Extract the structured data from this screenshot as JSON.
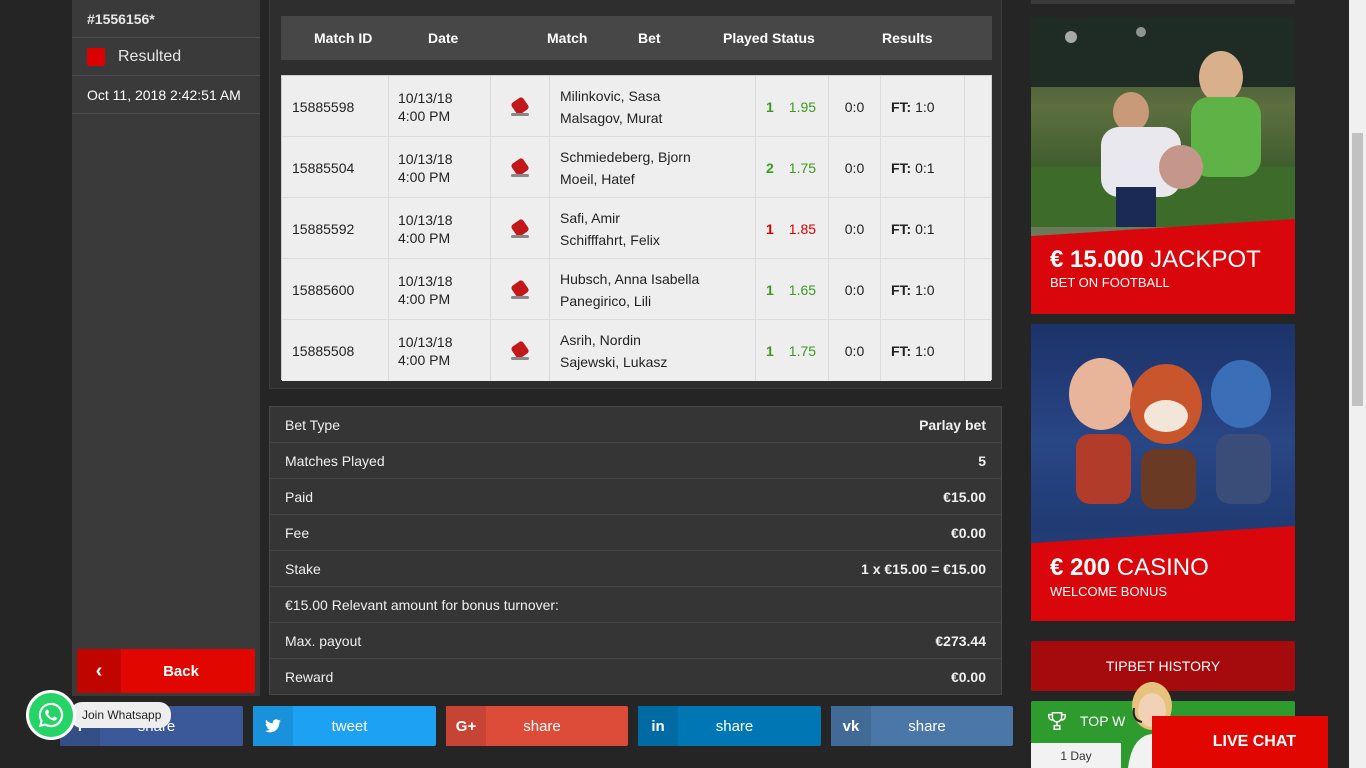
{
  "bet_panel": {
    "bet_id": "#1556156*",
    "status": "Resulted",
    "timestamp": "Oct 11, 2018 2:42:51 AM",
    "back_label": "Back",
    "status_color": "#dd0000"
  },
  "matches_table": {
    "headers": [
      "Match ID",
      "Date",
      "Match",
      "Bet",
      "Played Status",
      "Results"
    ],
    "rows": [
      {
        "id": "15885598",
        "date": "10/13/18",
        "time": "4:00 PM",
        "home": "Milinkovic, Sasa",
        "away": "Malsagov, Murat",
        "pick": "1",
        "odds": "1.95",
        "outcome": "green",
        "score": "0:0",
        "ft_label": "FT:",
        "ft": "1:0"
      },
      {
        "id": "15885504",
        "date": "10/13/18",
        "time": "4:00 PM",
        "home": "Schmiedeberg, Bjorn",
        "away": "Moeil, Hatef",
        "pick": "2",
        "odds": "1.75",
        "outcome": "green",
        "score": "0:0",
        "ft_label": "FT:",
        "ft": "0:1"
      },
      {
        "id": "15885592",
        "date": "10/13/18",
        "time": "4:00 PM",
        "home": "Safi, Amir",
        "away": "Schifffahrt, Felix",
        "pick": "1",
        "odds": "1.85",
        "outcome": "red",
        "score": "0:0",
        "ft_label": "FT:",
        "ft": "0:1"
      },
      {
        "id": "15885600",
        "date": "10/13/18",
        "time": "4:00 PM",
        "home": "Hubsch, Anna Isabella",
        "away": "Panegirico, Lili",
        "pick": "1",
        "odds": "1.65",
        "outcome": "green",
        "score": "0:0",
        "ft_label": "FT:",
        "ft": "1:0"
      },
      {
        "id": "15885508",
        "date": "10/13/18",
        "time": "4:00 PM",
        "home": "Asrih, Nordin",
        "away": "Sajewski, Lukasz",
        "pick": "1",
        "odds": "1.75",
        "outcome": "green",
        "score": "0:0",
        "ft_label": "FT:",
        "ft": "1:0"
      }
    ]
  },
  "summary": {
    "bet_type_label": "Bet Type",
    "bet_type_value": "Parlay bet",
    "matches_played_label": "Matches Played",
    "matches_played_value": "5",
    "paid_label": "Paid",
    "paid_value": "€15.00",
    "fee_label": "Fee",
    "fee_value": "€0.00",
    "stake_label": "Stake",
    "stake_value": "1 x €15.00 = €15.00",
    "bonus_turnover_text": "€15.00 Relevant amount for bonus turnover:",
    "max_payout_label": "Max. payout",
    "max_payout_value": "€273.44",
    "reward_label": "Reward",
    "reward_value": "€0.00"
  },
  "share_bar": {
    "facebook": "share",
    "twitter": "tweet",
    "googleplus": "share",
    "linkedin": "share",
    "vk": "share"
  },
  "whatsapp": {
    "label": "Join Whatsapp"
  },
  "promos": {
    "jackpot_amount": "€ 15.000",
    "jackpot_word": "JACKPOT",
    "jackpot_sub": "BET ON FOOTBALL",
    "casino_amount": "€ 200",
    "casino_word": "CASINO",
    "casino_sub": "WELCOME BONUS"
  },
  "tipbet_history": "TIPBET HISTORY",
  "top_winners": {
    "title": "TOP W",
    "tab": "1 Day"
  },
  "live_chat": "LIVE CHAT",
  "colors": {
    "accent_red": "#e10600",
    "win_green": "#3c9a1f",
    "loss_red": "#d40000"
  }
}
